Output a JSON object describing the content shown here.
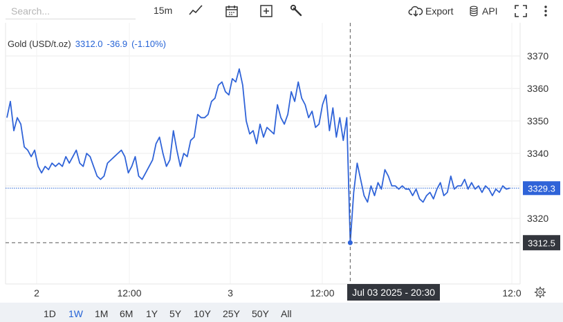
{
  "toolbar": {
    "search_placeholder": "Search...",
    "interval": "15m",
    "export_label": "Export",
    "api_label": "API",
    "icons": [
      "line-chart-icon",
      "calendar-icon",
      "plus-box-icon",
      "wrench-icon",
      "cloud-download-icon",
      "database-icon",
      "fullscreen-icon",
      "more-vertical-icon"
    ]
  },
  "legend": {
    "name": "Gold (USD/t.oz)",
    "price": "3312.0",
    "change": "-36.9",
    "change_pct": "(-1.10%)"
  },
  "crosshair": {
    "time_label": "Jul 03 2025 - 20:30",
    "price_label": "3312.5",
    "price": 3312.5
  },
  "last_price": {
    "label": "3329.3",
    "value": 3329.3
  },
  "ranges": [
    "1D",
    "1W",
    "1M",
    "6M",
    "1Y",
    "5Y",
    "10Y",
    "25Y",
    "50Y",
    "All"
  ],
  "active_range": "1W",
  "colors": {
    "line": "#2f63d8",
    "accent": "#2563d6",
    "label_bg": "#33363d"
  },
  "chart_data": {
    "type": "line",
    "title": "Gold (USD/t.oz)",
    "xlabel": "",
    "ylabel": "",
    "ylim": [
      3305,
      3380
    ],
    "y_ticks": [
      3320,
      3330,
      3340,
      3350,
      3360,
      3370
    ],
    "x_tick_labels": [
      "2",
      "12:00",
      "3",
      "12:00",
      "12:0"
    ],
    "grid": true,
    "series": [
      {
        "name": "Gold (USD/t.oz)",
        "x": [
          0,
          2,
          4,
          6,
          8,
          10,
          12,
          14,
          16,
          18,
          20,
          22,
          24,
          26,
          28,
          30,
          32,
          34,
          36,
          38,
          40,
          42,
          44,
          46,
          48,
          50,
          52,
          54,
          56,
          58,
          60,
          62,
          64,
          66,
          68,
          70,
          72,
          74,
          76,
          78,
          80,
          82,
          84,
          86,
          88,
          90,
          92,
          94,
          96,
          98,
          100,
          102,
          104,
          106,
          108,
          110,
          112,
          114,
          116,
          118,
          120,
          122,
          124,
          126,
          128,
          130,
          132,
          134,
          136,
          138,
          140,
          142,
          144,
          146,
          148,
          150,
          152,
          154,
          156,
          158,
          160,
          162,
          164,
          166,
          168,
          170,
          172,
          174,
          176,
          178,
          180,
          182,
          184,
          186,
          188,
          190,
          192,
          194,
          196,
          198,
          200,
          202,
          204,
          206,
          208,
          210,
          212,
          214,
          216,
          218,
          220,
          222,
          224,
          226,
          228,
          230,
          232,
          234,
          236,
          238,
          240,
          242,
          244,
          246,
          248,
          250,
          252,
          254,
          256,
          258,
          260,
          262,
          264,
          266,
          268,
          270,
          272,
          274,
          276,
          278,
          280,
          282,
          284,
          286,
          288,
          290
        ],
        "values": [
          3351,
          3356,
          3347,
          3351,
          3349,
          3342,
          3341,
          3339,
          3341,
          3336,
          3334,
          3336,
          3335,
          3337,
          3336,
          3337,
          3336,
          3339,
          3337,
          3339,
          3341,
          3337,
          3336,
          3340,
          3339,
          3336,
          3333,
          3332,
          3333,
          3337,
          3338,
          3339,
          3340,
          3341,
          3339,
          3334,
          3336,
          3339,
          3333,
          3332,
          3334,
          3336,
          3338,
          3343,
          3345,
          3340,
          3336,
          3338,
          3347,
          3341,
          3336,
          3340,
          3339,
          3344,
          3345,
          3352,
          3351,
          3351,
          3352,
          3356,
          3357,
          3361,
          3362,
          3359,
          3358,
          3363,
          3362,
          3366,
          3361,
          3350,
          3346,
          3347,
          3343,
          3349,
          3345,
          3348,
          3347,
          3346,
          3355,
          3351,
          3349,
          3352,
          3359,
          3356,
          3362,
          3357,
          3355,
          3351,
          3353,
          3348,
          3349,
          3355,
          3358,
          3347,
          3354,
          3345,
          3351,
          3344,
          3351,
          3312.5,
          3328,
          3337,
          3332,
          3327,
          3325,
          3330,
          3327,
          3331,
          3329,
          3335,
          3333,
          3330,
          3330,
          3329,
          3330,
          3329,
          3329,
          3327,
          3329,
          3326,
          3325,
          3327,
          3328,
          3326,
          3329,
          3331,
          3327,
          3328,
          3333,
          3329,
          3330,
          3330,
          3332,
          3329,
          3331,
          3329,
          3330,
          3328,
          3330,
          3329,
          3327,
          3329,
          3328,
          3330,
          3329,
          3329.3
        ]
      }
    ]
  }
}
